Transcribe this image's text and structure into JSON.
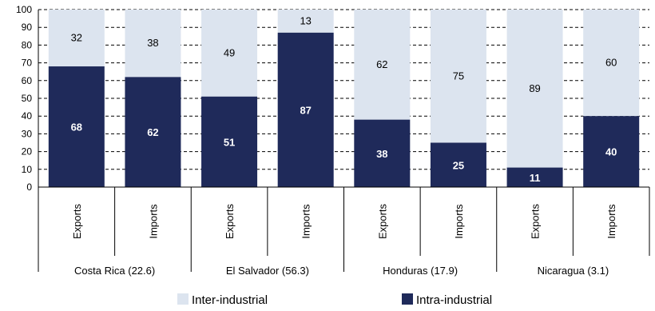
{
  "chart_data": {
    "type": "bar",
    "stacked": true,
    "groups": [
      {
        "label": "Costa Rica (22.6)",
        "categories": [
          "Exports",
          "Imports"
        ]
      },
      {
        "label": "El Salvador (56.3)",
        "categories": [
          "Exports",
          "Imports"
        ]
      },
      {
        "label": "Honduras (17.9)",
        "categories": [
          "Exports",
          "Imports"
        ]
      },
      {
        "label": "Nicaragua (3.1)",
        "categories": [
          "Exports",
          "Imports"
        ]
      }
    ],
    "categories": [
      "Exports",
      "Imports",
      "Exports",
      "Imports",
      "Exports",
      "Imports",
      "Exports",
      "Imports"
    ],
    "series": [
      {
        "name": "Intra-industrial",
        "color": "#1f2a5a",
        "values": [
          68,
          62,
          51,
          87,
          38,
          25,
          11,
          40
        ]
      },
      {
        "name": "Inter-industrial",
        "color": "#dce4ef",
        "values": [
          32,
          38,
          49,
          13,
          62,
          75,
          89,
          60
        ]
      }
    ],
    "yticks": [
      0,
      10,
      20,
      30,
      40,
      50,
      60,
      70,
      80,
      90,
      100
    ],
    "ylim": [
      0,
      100
    ],
    "grid": true,
    "legend_position": "bottom",
    "legend": [
      "Inter-industrial",
      "Intra-industrial"
    ]
  }
}
